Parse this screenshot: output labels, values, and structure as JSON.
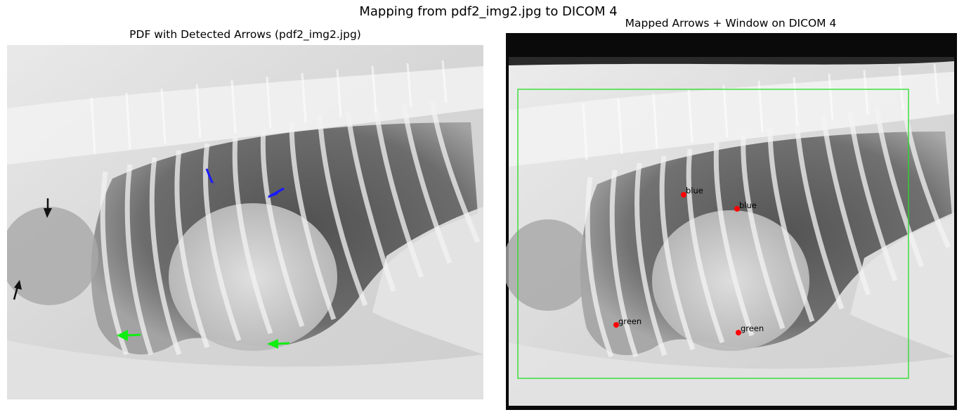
{
  "figure": {
    "suptitle": "Mapping from pdf2_img2.jpg to DICOM 4",
    "left_panel": {
      "title": "PDF with Detected Arrows (pdf2_img2.jpg)"
    },
    "right_panel": {
      "title": "Mapped Arrows + Window on DICOM 4",
      "markers": [
        {
          "label": "blue"
        },
        {
          "label": "blue"
        },
        {
          "label": "green"
        },
        {
          "label": "green"
        }
      ]
    }
  },
  "colors": {
    "marker": "#ff0000",
    "window": "#22dd22",
    "arrow_blue": "#1a1aff",
    "arrow_green": "#11ee11",
    "arrow_black": "#111111"
  }
}
